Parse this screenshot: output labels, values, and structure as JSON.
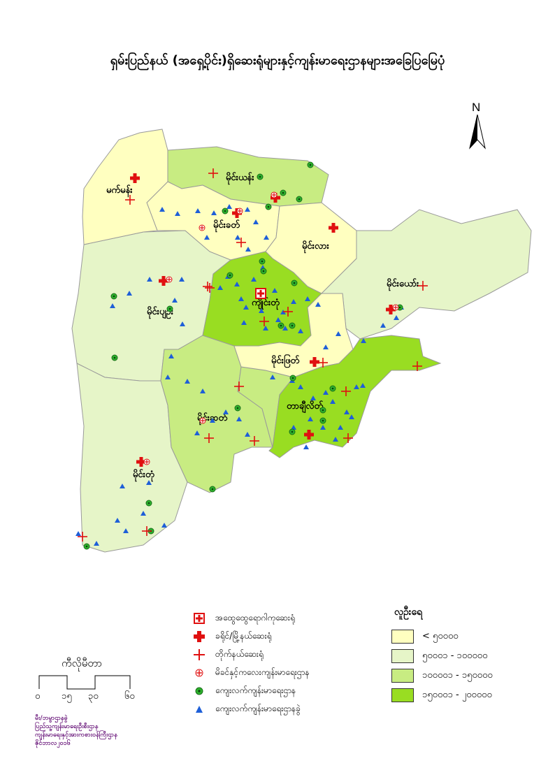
{
  "title": "ရှမ်းပြည်နယ် (အရှေ့ပိုင်း)ရှိဆေးရုံများနှင့်ကျန်းမာရေးဌာနများအခြေပြမြေပုံ",
  "north_label": "N",
  "colors": {
    "pop_lt_50000": "#ffffc0",
    "pop_50001_100000": "#e6f5c8",
    "pop_100001_150000": "#c8ec82",
    "pop_150001_200000": "#99dd22",
    "boundary": "#9a9a9a",
    "hospital_red": "#e01010",
    "rhc_green": "#2db22d",
    "subrhc_blue": "#1e5fd8"
  },
  "districts": [
    {
      "name": "မက်မန်း",
      "pop_class": "pop_lt_50000"
    },
    {
      "name": "မိုင်းယန်း",
      "pop_class": "pop_100001_150000"
    },
    {
      "name": "မိုင်းခတ်",
      "pop_class": "pop_lt_50000"
    },
    {
      "name": "မိုင်းလား",
      "pop_class": "pop_lt_50000"
    },
    {
      "name": "မိုင်းယော်း",
      "pop_class": "pop_50001_100000"
    },
    {
      "name": "မိုင်းပျဉ်း",
      "pop_class": "pop_50001_100000"
    },
    {
      "name": "ကျိုင်းတုံ",
      "pop_class": "pop_150001_200000"
    },
    {
      "name": "မိုင်းဖြတ်",
      "pop_class": "pop_lt_50000"
    },
    {
      "name": "တာချီလိတ်",
      "pop_class": "pop_150001_200000"
    },
    {
      "name": "မိုင်းဆတ်",
      "pop_class": "pop_100001_150000"
    },
    {
      "name": "မိုင်းတုံ",
      "pop_class": "pop_50001_100000"
    }
  ],
  "legend": {
    "items": [
      {
        "icon": "general-hospital-icon",
        "label": "အထွေထွေရောဂါကုဆေးရုံ"
      },
      {
        "icon": "district-township-hospital-icon",
        "label": "ခရိုင်/မြို့နယ်ဆေးရုံ"
      },
      {
        "icon": "station-hospital-icon",
        "label": "တိုက်နယ်ဆေးရုံ"
      },
      {
        "icon": "mch-center-icon",
        "label": "မိခင်နှင့်ကလေးကျန်းမာရေးဌာန"
      },
      {
        "icon": "rural-health-center-icon",
        "label": "ကျေးလက်ကျန်းမာရေးဌာန"
      },
      {
        "icon": "sub-rural-health-center-icon",
        "label": "ကျေးလက်ကျန်းမာရေးဌာနခွဲ"
      }
    ]
  },
  "population_legend": {
    "title": "လူဦးရေ",
    "classes": [
      {
        "key": "pop_lt_50000",
        "label": "< ၅၀၀၀၀"
      },
      {
        "key": "pop_50001_100000",
        "label": "၅၀၀၀၁ - ၁၀၀၀၀၀"
      },
      {
        "key": "pop_100001_150000",
        "label": "၁၀၀၀၀၁ - ၁၅၀၀၀၀"
      },
      {
        "key": "pop_150001_200000",
        "label": "၁၅၀၀၀၁ - ၂၀၀၀၀၀"
      }
    ]
  },
  "scale": {
    "title": "ကီလိုမီတာ",
    "ticks": [
      "၀",
      "၁၅",
      "၃၀",
      "၆၀"
    ]
  },
  "credits": [
    "မီး/ဘမ္ဗာဌာနခွဲ",
    "ပြည်သူ့ကျန်းမာရေးဦးစီးဌာန",
    "ကျန်းမာရေးနှင့်အားကစားဝန်ကြီးဌာန",
    "ဇိုင်ဘာလ၂၀၁၆"
  ]
}
